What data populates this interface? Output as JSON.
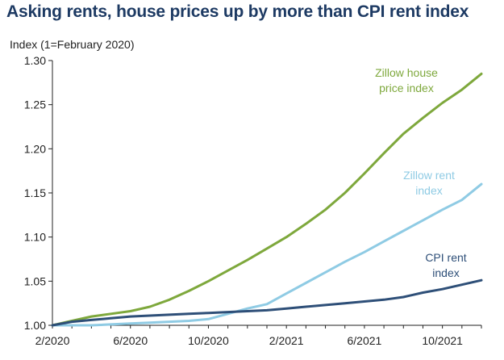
{
  "chart_data": {
    "type": "line",
    "title": "Asking rents, house prices up by more than CPI rent index",
    "ylabel": "Index (1=February 2020)",
    "xlabel": "",
    "ylim": [
      1.0,
      1.3
    ],
    "yticks": [
      "1.00",
      "1.05",
      "1.10",
      "1.15",
      "1.20",
      "1.25",
      "1.30"
    ],
    "xticks": [
      "2/2020",
      "6/2020",
      "10/2020",
      "2/2021",
      "6/2021",
      "10/2021"
    ],
    "x": [
      "2/2020",
      "3/2020",
      "4/2020",
      "5/2020",
      "6/2020",
      "7/2020",
      "8/2020",
      "9/2020",
      "10/2020",
      "11/2020",
      "12/2020",
      "1/2021",
      "2/2021",
      "3/2021",
      "4/2021",
      "5/2021",
      "6/2021",
      "7/2021",
      "8/2021",
      "9/2021",
      "10/2021",
      "11/2021",
      "12/2021"
    ],
    "series": [
      {
        "name": "Zillow house price index",
        "label_lines": [
          "Zillow house",
          "price index"
        ],
        "color": "#7ea83c",
        "values": [
          1.0,
          1.005,
          1.01,
          1.013,
          1.016,
          1.021,
          1.029,
          1.039,
          1.05,
          1.062,
          1.074,
          1.087,
          1.1,
          1.115,
          1.131,
          1.15,
          1.172,
          1.195,
          1.217,
          1.235,
          1.252,
          1.267,
          1.285
        ]
      },
      {
        "name": "Zillow rent index",
        "label_lines": [
          "Zillow rent",
          "index"
        ],
        "color": "#8fcbe4",
        "values": [
          1.0,
          1.0,
          1.0,
          1.001,
          1.002,
          1.003,
          1.004,
          1.005,
          1.007,
          1.013,
          1.019,
          1.024,
          1.036,
          1.048,
          1.06,
          1.072,
          1.083,
          1.095,
          1.107,
          1.119,
          1.131,
          1.142,
          1.16
        ]
      },
      {
        "name": "CPI rent index",
        "label_lines": [
          "CPI rent",
          "index"
        ],
        "color": "#2e4f78",
        "values": [
          1.0,
          1.004,
          1.006,
          1.008,
          1.01,
          1.011,
          1.012,
          1.013,
          1.014,
          1.015,
          1.016,
          1.017,
          1.019,
          1.021,
          1.023,
          1.025,
          1.027,
          1.029,
          1.032,
          1.037,
          1.041,
          1.046,
          1.051
        ]
      }
    ]
  }
}
